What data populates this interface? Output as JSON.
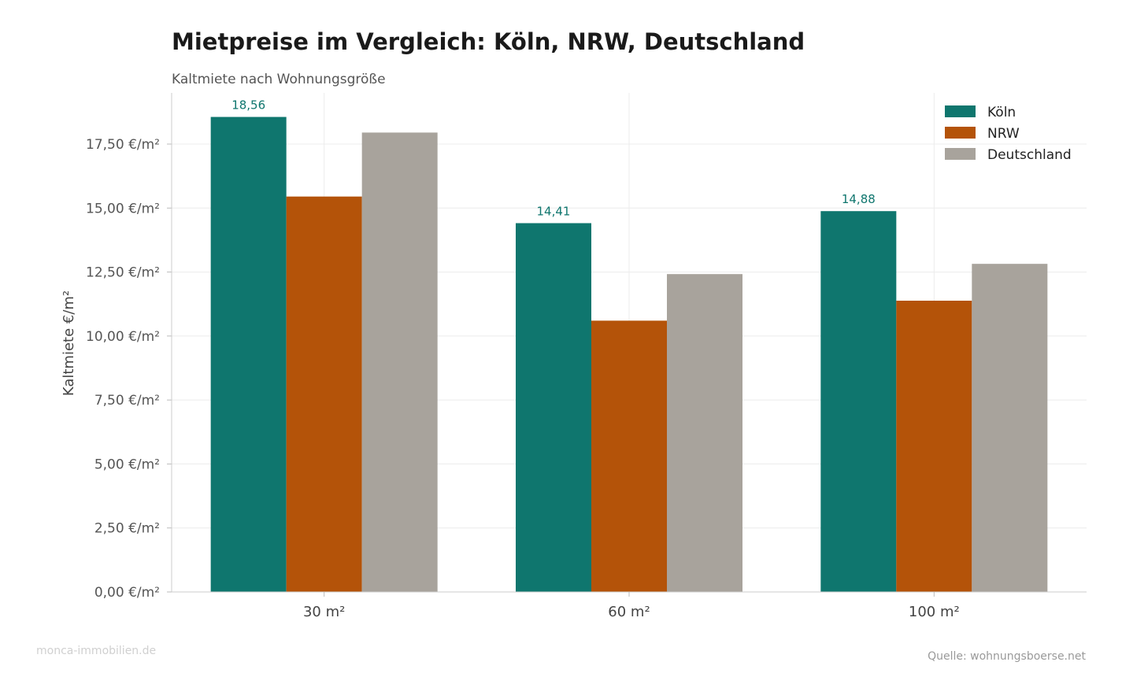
{
  "chart_data": {
    "type": "bar",
    "title": "Mietpreise im Vergleich: Köln, NRW, Deutschland",
    "subtitle": "Kaltmiete nach Wohnungsgröße",
    "ylabel": "Kaltmiete €/m²",
    "xlabel": "",
    "categories": [
      "30 m²",
      "60 m²",
      "100 m²"
    ],
    "series": [
      {
        "name": "Köln",
        "color": "#0f766e",
        "values": [
          18.56,
          14.41,
          14.88
        ],
        "labels": [
          "18,56",
          "14,41",
          "14,88"
        ]
      },
      {
        "name": "NRW",
        "color": "#b45309",
        "values": [
          15.45,
          10.6,
          11.38
        ]
      },
      {
        "name": "Deutschland",
        "color": "#a8a39c",
        "values": [
          17.95,
          12.42,
          12.82
        ]
      }
    ],
    "ylim": [
      0,
      19.5
    ],
    "yticks": [
      {
        "value": 0,
        "label": "0,00 €/m²"
      },
      {
        "value": 2.5,
        "label": "2,50 €/m²"
      },
      {
        "value": 5,
        "label": "5,00 €/m²"
      },
      {
        "value": 7.5,
        "label": "7,50 €/m²"
      },
      {
        "value": 10,
        "label": "10,00 €/m²"
      },
      {
        "value": 12.5,
        "label": "12,50 €/m²"
      },
      {
        "value": 15,
        "label": "15,00 €/m²"
      },
      {
        "value": 17.5,
        "label": "17,50 €/m²"
      }
    ],
    "grid": true,
    "legend_position": "top-right"
  },
  "footer": {
    "watermark": "monca-immobilien.de",
    "source": "Quelle: wohnungsboerse.net"
  }
}
